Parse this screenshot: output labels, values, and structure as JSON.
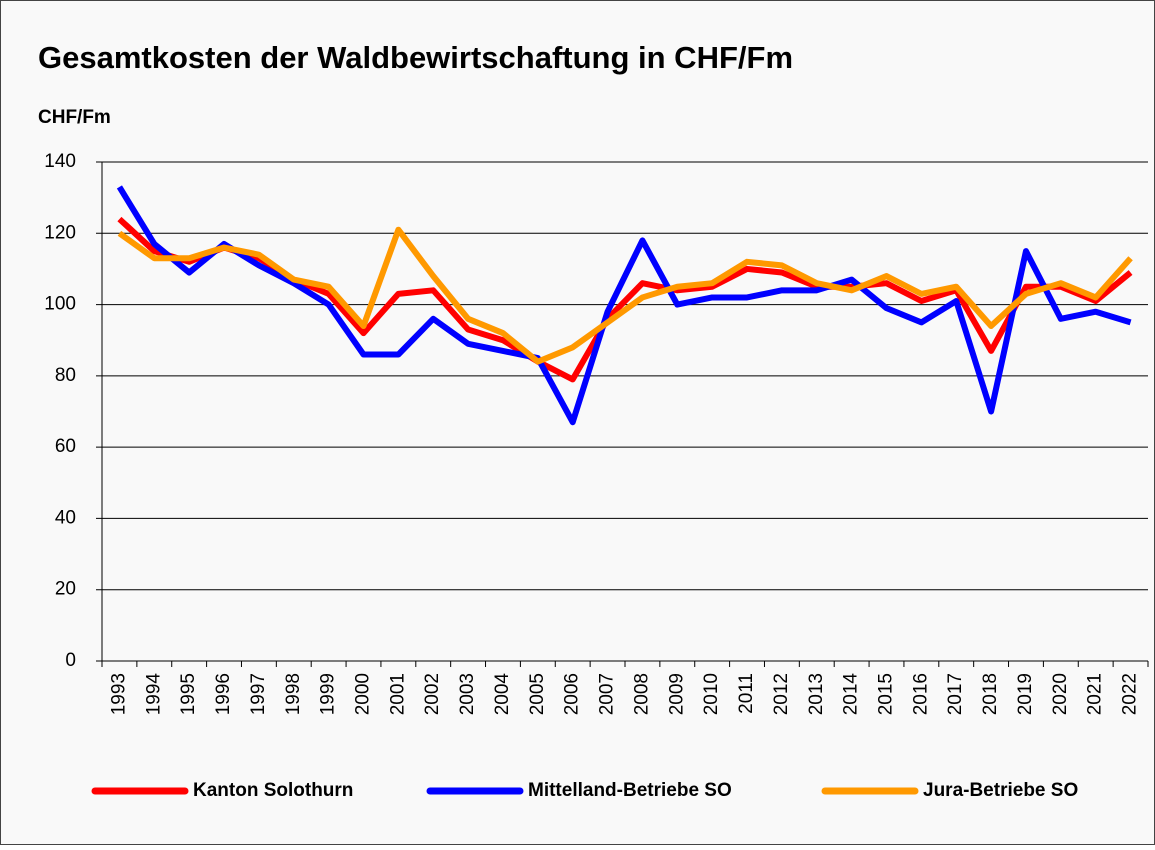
{
  "chart_data": {
    "type": "line",
    "title": "Gesamtkosten der Waldbewirtschaftung in CHF/Fm",
    "ylabel": "CHF/Fm",
    "categories": [
      "1993",
      "1994",
      "1995",
      "1996",
      "1997",
      "1998",
      "1999",
      "2000",
      "2001",
      "2002",
      "2003",
      "2004",
      "2005",
      "2006",
      "2007",
      "2008",
      "2009",
      "2010",
      "2011",
      "2012",
      "2013",
      "2014",
      "2015",
      "2016",
      "2017",
      "2018",
      "2019",
      "2020",
      "2021",
      "2022"
    ],
    "series": [
      {
        "name": "Kanton Solothurn",
        "color": "#ff0000",
        "values": [
          124,
          115,
          112,
          116,
          113,
          107,
          103,
          92,
          103,
          104,
          93,
          90,
          84,
          79,
          96,
          106,
          104,
          105,
          110,
          109,
          105,
          105,
          106,
          101,
          104,
          87,
          105,
          105,
          101,
          109
        ]
      },
      {
        "name": "Mittelland-Betriebe SO",
        "color": "#0000ff",
        "values": [
          133,
          117,
          109,
          117,
          111,
          106,
          100,
          86,
          86,
          96,
          89,
          87,
          85,
          67,
          98,
          118,
          100,
          102,
          102,
          104,
          104,
          107,
          99,
          95,
          101,
          70,
          115,
          96,
          98,
          95
        ]
      },
      {
        "name": "Jura-Betriebe SO",
        "color": "#ff9900",
        "values": [
          120,
          113,
          113,
          116,
          114,
          107,
          105,
          94,
          121,
          108,
          96,
          92,
          84,
          88,
          95,
          102,
          105,
          106,
          112,
          111,
          106,
          104,
          108,
          103,
          105,
          94,
          103,
          106,
          102,
          113
        ]
      }
    ],
    "ylim": [
      0,
      140
    ],
    "yticks": [
      0,
      20,
      40,
      60,
      80,
      100,
      120,
      140
    ],
    "grid": true,
    "legend": "bottom"
  }
}
